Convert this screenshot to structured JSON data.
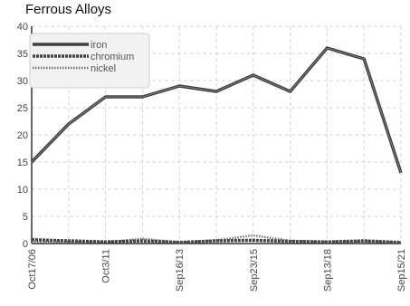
{
  "chart_data": {
    "type": "line",
    "title": "Ferrous Alloys",
    "xlabel": "",
    "ylabel": "",
    "ylim": [
      0,
      40
    ],
    "yticks": [
      0,
      5,
      10,
      15,
      20,
      25,
      30,
      35,
      40
    ],
    "x": [
      "Oct17/06",
      "",
      "Oct3/11",
      "",
      "Sep16/13",
      "",
      "Sep23/15",
      "",
      "Sep13/18",
      "",
      "Sep15/21"
    ],
    "grid": true,
    "legend_position": "top-left",
    "series": [
      {
        "name": "iron",
        "color": "#3f3f3f",
        "style": "solid",
        "values": [
          15,
          22,
          27,
          27,
          29,
          28,
          31,
          28,
          36,
          34,
          13
        ]
      },
      {
        "name": "chromium",
        "color": "#444444",
        "style": "dashed",
        "values": [
          0.7,
          0.5,
          0.3,
          0.5,
          0.2,
          0.5,
          0.6,
          0.4,
          0.3,
          0.5,
          0.2
        ]
      },
      {
        "name": "nickel",
        "color": "#777777",
        "style": "dotted",
        "values": [
          0.3,
          0.3,
          0.2,
          0.9,
          0.2,
          0.6,
          1.5,
          0.5,
          0.3,
          0.4,
          0.2
        ]
      }
    ]
  }
}
